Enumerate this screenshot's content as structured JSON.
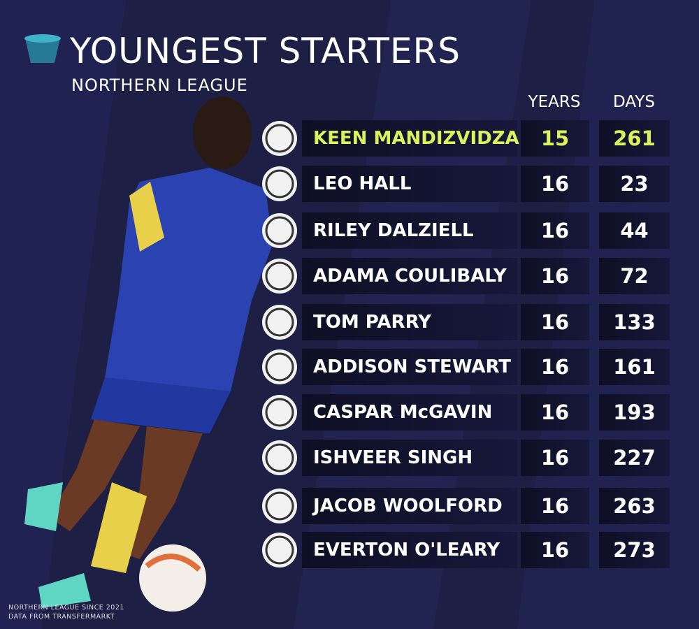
{
  "header": {
    "title": "YOUNGEST STARTERS",
    "subtitle": "NORTHERN LEAGUE"
  },
  "table": {
    "columns": [
      "YEARS",
      "DAYS"
    ],
    "rows": [
      [
        "KEEN MANDIZVIDZA",
        15,
        261
      ],
      [
        "LEO HALL",
        16,
        23
      ],
      [
        "RILEY DALZIELL",
        16,
        44
      ],
      [
        "ADAMA COULIBALY",
        16,
        72
      ],
      [
        "TOM PARRY",
        16,
        133
      ],
      [
        "ADDISON STEWART",
        16,
        161
      ],
      [
        "CASPAR McGAVIN",
        16,
        193
      ],
      [
        "ISHVEER SINGH",
        16,
        227
      ],
      [
        "JACOB WOOLFORD",
        16,
        263
      ],
      [
        "EVERTON O'LEARY",
        16,
        273
      ]
    ]
  },
  "footer": [
    "NORTHERN LEAGUE SINCE 2021",
    "DATA FROM TRANSFERMARKT"
  ]
}
